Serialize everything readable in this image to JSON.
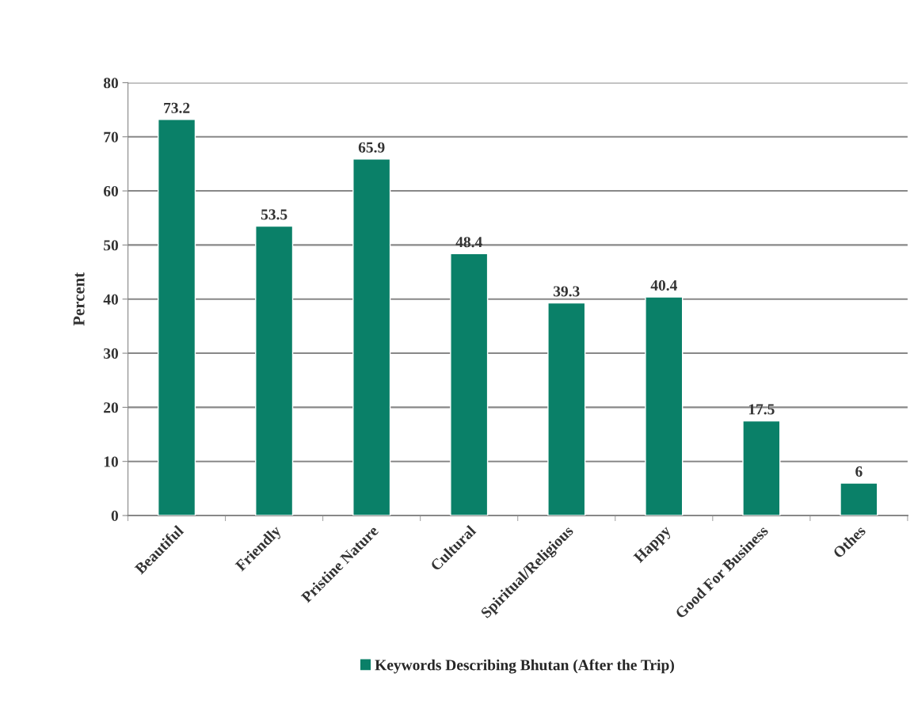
{
  "chart_data": {
    "type": "bar",
    "ylabel": "Percent",
    "categories": [
      "Beautiful",
      "Friendly",
      "Pristine Nature",
      "Cultural",
      "Spiritual/Religious",
      "Happy",
      "Good For Business",
      "Othes"
    ],
    "series": [
      {
        "name": "Keywords Describing Bhutan (After the Trip)",
        "color": "#0a8068",
        "values": [
          73.2,
          53.5,
          65.9,
          48.4,
          39.3,
          40.4,
          17.5,
          6
        ]
      }
    ],
    "ylim": [
      0,
      80
    ],
    "yticks": [
      0,
      10,
      20,
      30,
      40,
      50,
      60,
      70,
      80
    ],
    "data_labels": true,
    "grid": "y",
    "legend": "bottom"
  }
}
